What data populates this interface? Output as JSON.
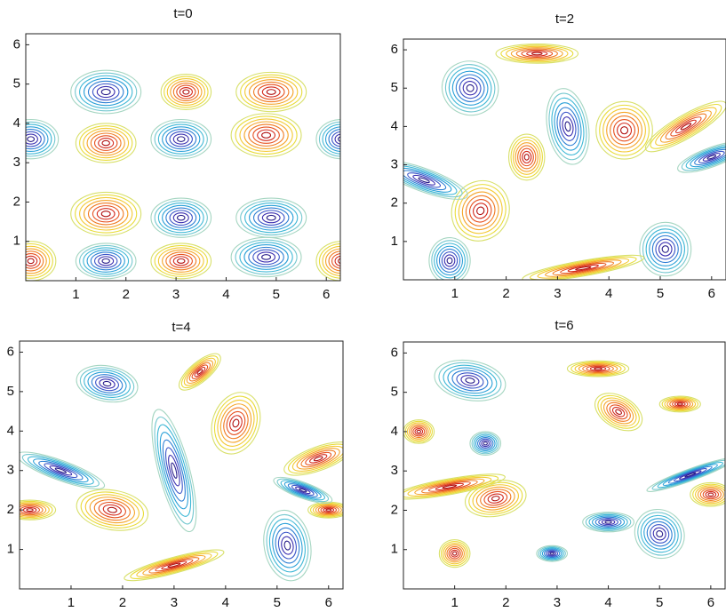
{
  "chart_data": [
    {
      "type": "contour",
      "title": "t=0",
      "xlim": [
        0,
        6.28
      ],
      "ylim": [
        0,
        6.28
      ],
      "xticks": [
        1,
        2,
        3,
        4,
        5,
        6
      ],
      "yticks": [
        1,
        2,
        3,
        4,
        5,
        6
      ]
    },
    {
      "type": "contour",
      "title": "t=2",
      "xlim": [
        0,
        6.28
      ],
      "ylim": [
        0,
        6.28
      ],
      "xticks": [
        1,
        2,
        3,
        4,
        5,
        6
      ],
      "yticks": [
        1,
        2,
        3,
        4,
        5,
        6
      ]
    },
    {
      "type": "contour",
      "title": "t=4",
      "xlim": [
        0,
        6.28
      ],
      "ylim": [
        0,
        6.28
      ],
      "xticks": [
        1,
        2,
        3,
        4,
        5,
        6
      ],
      "yticks": [
        1,
        2,
        3,
        4,
        5,
        6
      ]
    },
    {
      "type": "contour",
      "title": "t=6",
      "xlim": [
        0,
        6.28
      ],
      "ylim": [
        0,
        6.28
      ],
      "xticks": [
        1,
        2,
        3,
        4,
        5,
        6
      ],
      "yticks": [
        1,
        2,
        3,
        4,
        5,
        6
      ]
    }
  ]
}
